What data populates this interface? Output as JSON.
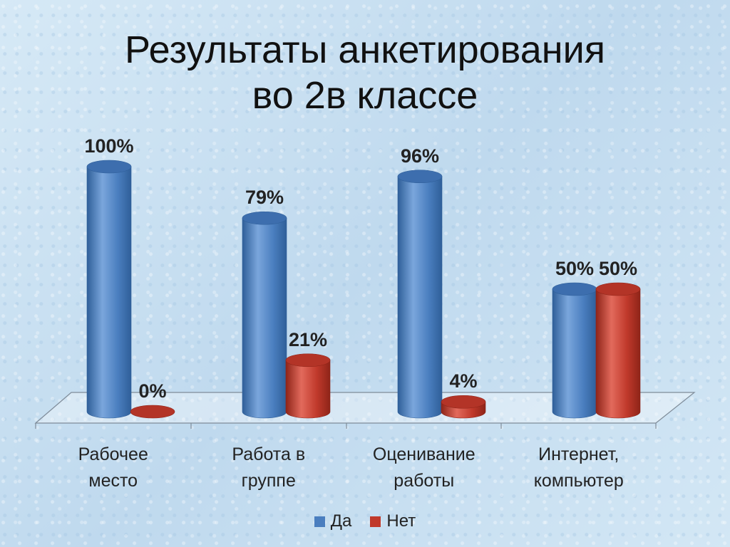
{
  "slide": {
    "title_line1": "Результаты анкетирования",
    "title_line2": "во 2в классе"
  },
  "colors": {
    "yes": "#4a7ebf",
    "no": "#c0392b"
  },
  "chart_data": {
    "type": "bar",
    "categories": [
      [
        "Рабочее",
        "место"
      ],
      [
        "Работа в",
        "группе"
      ],
      [
        "Оценивание",
        "работы"
      ],
      [
        "Интернет,",
        "компьютер"
      ]
    ],
    "series": [
      {
        "name": "Да",
        "values": [
          100,
          79,
          96,
          50
        ],
        "labels": [
          "100%",
          "79%",
          "96%",
          "50%"
        ]
      },
      {
        "name": "Нет",
        "values": [
          0,
          21,
          4,
          50
        ],
        "labels": [
          "0%",
          "21%",
          "4%",
          "50%"
        ]
      }
    ],
    "ylim": [
      0,
      100
    ],
    "legend": "bottom",
    "grid": false
  }
}
